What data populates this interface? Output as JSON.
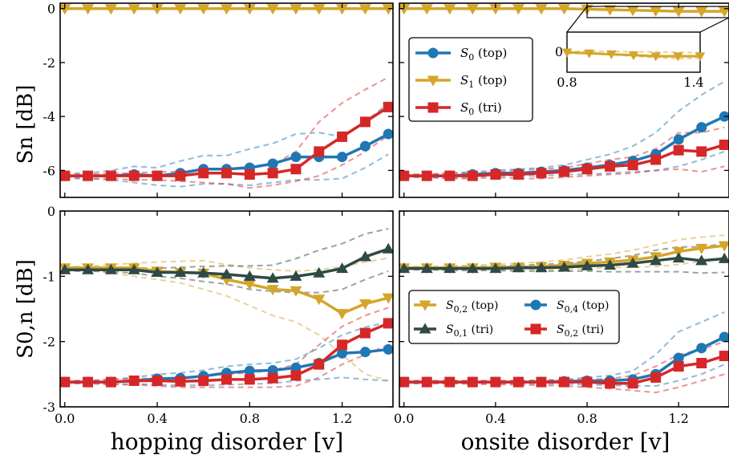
{
  "chart_data": {
    "type": "line",
    "colors": {
      "S0_top": "#1f77b4",
      "S1_top": "#d4a52a",
      "S0_tri": "#d62728",
      "S01_tri": "#2f4a45"
    },
    "x": [
      0.0,
      0.1,
      0.2,
      0.3,
      0.4,
      0.5,
      0.6,
      0.7,
      0.8,
      0.9,
      1.0,
      1.1,
      1.2,
      1.3,
      1.4
    ],
    "xticks": [
      "0.0",
      "0.4",
      "0.8",
      "1.2"
    ],
    "xlabels": [
      "hopping disorder [v]",
      "onsite disorder [v]"
    ],
    "ylabels": [
      "Sn [dB]",
      "S0,n [dB]"
    ],
    "panels": [
      {
        "id": "top-left",
        "ylim": [
          -7.0,
          0.2
        ],
        "yticks": [
          "0",
          "-2",
          "-4",
          "-6"
        ],
        "series": [
          {
            "name": "S0 (top)",
            "key": "S0_top",
            "marker": "circle",
            "values": [
              -6.2,
              -6.2,
              -6.2,
              -6.15,
              -6.2,
              -6.1,
              -5.95,
              -5.95,
              -5.9,
              -5.75,
              -5.5,
              -5.5,
              -5.5,
              -5.1,
              -4.65
            ],
            "band_hi": [
              -6.1,
              -6.1,
              -6.0,
              -5.85,
              -5.9,
              -5.65,
              -5.45,
              -5.45,
              -5.2,
              -5.0,
              -4.65,
              -4.6,
              -4.75,
              -4.2,
              -3.5
            ],
            "band_lo": [
              -6.3,
              -6.3,
              -6.35,
              -6.45,
              -6.55,
              -6.6,
              -6.5,
              -6.5,
              -6.55,
              -6.45,
              -6.35,
              -6.35,
              -6.3,
              -5.9,
              -5.4
            ]
          },
          {
            "name": "S1 (top)",
            "key": "S1_top",
            "marker": "triangle-down",
            "values": [
              0,
              0,
              0,
              0,
              0,
              0,
              0,
              0,
              0,
              0,
              0,
              0,
              0,
              0,
              0
            ]
          },
          {
            "name": "S0 (tri)",
            "key": "S0_tri",
            "marker": "square",
            "values": [
              -6.2,
              -6.2,
              -6.2,
              -6.2,
              -6.2,
              -6.2,
              -6.1,
              -6.1,
              -6.15,
              -6.1,
              -5.95,
              -5.3,
              -4.75,
              -4.2,
              -3.65
            ],
            "band_hi": [
              -6.15,
              -6.15,
              -6.1,
              -6.1,
              -6.05,
              -6.05,
              -5.95,
              -5.95,
              -5.85,
              -5.8,
              -5.3,
              -4.2,
              -3.5,
              -3.0,
              -2.55
            ],
            "band_lo": [
              -6.25,
              -6.3,
              -6.3,
              -6.35,
              -6.35,
              -6.4,
              -6.45,
              -6.5,
              -6.65,
              -6.55,
              -6.4,
              -6.2,
              -5.8,
              -5.3,
              -4.7
            ]
          }
        ]
      },
      {
        "id": "top-right",
        "ylim": [
          -7.0,
          0.2
        ],
        "yticks": [],
        "series": [
          {
            "name": "S0 (top)",
            "key": "S0_top",
            "marker": "circle",
            "values": [
              -6.2,
              -6.2,
              -6.2,
              -6.15,
              -6.1,
              -6.1,
              -6.05,
              -6.0,
              -5.9,
              -5.8,
              -5.65,
              -5.4,
              -4.85,
              -4.4,
              -4.0
            ],
            "band_hi": [
              -6.15,
              -6.15,
              -6.1,
              -6.05,
              -6.0,
              -5.95,
              -5.9,
              -5.8,
              -5.6,
              -5.4,
              -5.1,
              -4.6,
              -3.8,
              -3.2,
              -2.7
            ],
            "band_lo": [
              -6.25,
              -6.25,
              -6.3,
              -6.25,
              -6.2,
              -6.2,
              -6.2,
              -6.15,
              -6.15,
              -6.1,
              -6.05,
              -6.0,
              -5.85,
              -5.6,
              -5.3
            ]
          },
          {
            "name": "S1 (top)",
            "key": "S1_top",
            "marker": "triangle-down",
            "values": [
              0,
              0,
              0,
              0,
              0,
              0,
              0,
              0,
              -0.02,
              -0.04,
              -0.06,
              -0.08,
              -0.1,
              -0.1,
              -0.1
            ]
          },
          {
            "name": "S0 (tri)",
            "key": "S0_tri",
            "marker": "square",
            "values": [
              -6.2,
              -6.2,
              -6.2,
              -6.2,
              -6.15,
              -6.15,
              -6.1,
              -6.05,
              -5.95,
              -5.85,
              -5.8,
              -5.6,
              -5.25,
              -5.3,
              -5.05
            ],
            "band_hi": [
              -6.15,
              -6.15,
              -6.1,
              -6.1,
              -6.05,
              -6.0,
              -5.95,
              -5.9,
              -5.75,
              -5.6,
              -5.5,
              -5.2,
              -4.6,
              -4.6,
              -4.4
            ],
            "band_lo": [
              -6.25,
              -6.25,
              -6.3,
              -6.3,
              -6.25,
              -6.3,
              -6.3,
              -6.25,
              -6.2,
              -6.15,
              -6.1,
              -6.0,
              -5.95,
              -6.05,
              -5.85
            ]
          }
        ],
        "inset": {
          "xlim": [
            0.8,
            1.4
          ],
          "xticks": [
            "0.8",
            "1.4"
          ],
          "yticks": [
            "0"
          ]
        }
      },
      {
        "id": "bottom-left",
        "ylim": [
          -3.0,
          0.0
        ],
        "yticks": [
          "0",
          "-1",
          "-2",
          "-3"
        ],
        "series": [
          {
            "name": "S0,2 (top)",
            "key": "S1_top",
            "marker": "triangle-down",
            "values": [
              -0.87,
              -0.87,
              -0.87,
              -0.87,
              -0.92,
              -0.94,
              -0.95,
              -1.05,
              -1.12,
              -1.2,
              -1.22,
              -1.35,
              -1.57,
              -1.42,
              -1.33
            ],
            "band_hi": [
              -0.85,
              -0.85,
              -0.82,
              -0.8,
              -0.78,
              -0.77,
              -0.76,
              -0.82,
              -0.87,
              -0.9,
              -0.92,
              -0.9,
              -0.85,
              -0.78,
              -0.72
            ],
            "band_lo": [
              -0.9,
              -0.9,
              -0.95,
              -1.0,
              -1.05,
              -1.1,
              -1.2,
              -1.3,
              -1.45,
              -1.6,
              -1.7,
              -1.9,
              -2.2,
              -2.5,
              -2.6
            ]
          },
          {
            "name": "S0,1 (tri)",
            "key": "S01_tri",
            "marker": "triangle-up",
            "values": [
              -0.9,
              -0.9,
              -0.9,
              -0.9,
              -0.94,
              -0.94,
              -0.95,
              -0.97,
              -1.0,
              -1.03,
              -1.0,
              -0.95,
              -0.88,
              -0.7,
              -0.58
            ],
            "band_hi": [
              -0.88,
              -0.88,
              -0.88,
              -0.87,
              -0.88,
              -0.86,
              -0.85,
              -0.84,
              -0.84,
              -0.83,
              -0.73,
              -0.6,
              -0.5,
              -0.35,
              -0.27
            ],
            "band_lo": [
              -0.92,
              -0.92,
              -0.93,
              -0.95,
              -1.0,
              -1.03,
              -1.08,
              -1.12,
              -1.2,
              -1.23,
              -1.25,
              -1.25,
              -1.2,
              -1.05,
              -0.92
            ]
          },
          {
            "name": "S0,4 (top)",
            "key": "S0_top",
            "marker": "circle",
            "values": [
              -2.62,
              -2.62,
              -2.62,
              -2.6,
              -2.57,
              -2.56,
              -2.53,
              -2.48,
              -2.45,
              -2.44,
              -2.4,
              -2.33,
              -2.18,
              -2.16,
              -2.12
            ],
            "band_hi": [
              -2.6,
              -2.6,
              -2.58,
              -2.55,
              -2.5,
              -2.48,
              -2.44,
              -2.38,
              -2.35,
              -2.33,
              -2.27,
              -2.1,
              -1.9,
              -1.78,
              -1.7
            ],
            "band_lo": [
              -2.64,
              -2.64,
              -2.65,
              -2.65,
              -2.66,
              -2.67,
              -2.67,
              -2.66,
              -2.65,
              -2.64,
              -2.6,
              -2.58,
              -2.55,
              -2.58,
              -2.6
            ]
          },
          {
            "name": "S0,2 (tri)",
            "key": "S0_tri",
            "marker": "square",
            "values": [
              -2.62,
              -2.62,
              -2.62,
              -2.6,
              -2.6,
              -2.61,
              -2.6,
              -2.58,
              -2.58,
              -2.56,
              -2.52,
              -2.35,
              -2.05,
              -1.87,
              -1.72
            ],
            "band_hi": [
              -2.6,
              -2.6,
              -2.58,
              -2.57,
              -2.56,
              -2.56,
              -2.53,
              -2.5,
              -2.48,
              -2.44,
              -2.35,
              -2.05,
              -1.77,
              -1.6,
              -1.48
            ],
            "band_lo": [
              -2.64,
              -2.64,
              -2.66,
              -2.66,
              -2.68,
              -2.7,
              -2.7,
              -2.7,
              -2.7,
              -2.7,
              -2.68,
              -2.55,
              -2.35,
              -2.2,
              -2.05
            ]
          }
        ]
      },
      {
        "id": "bottom-right",
        "ylim": [
          -3.0,
          0.0
        ],
        "yticks": [],
        "series": [
          {
            "name": "S0,2 (top)",
            "key": "S1_top",
            "marker": "triangle-down",
            "values": [
              -0.87,
              -0.87,
              -0.87,
              -0.87,
              -0.86,
              -0.86,
              -0.85,
              -0.83,
              -0.8,
              -0.78,
              -0.75,
              -0.7,
              -0.62,
              -0.57,
              -0.53
            ],
            "band_hi": [
              -0.85,
              -0.85,
              -0.84,
              -0.83,
              -0.82,
              -0.8,
              -0.78,
              -0.75,
              -0.7,
              -0.66,
              -0.6,
              -0.52,
              -0.44,
              -0.4,
              -0.37
            ],
            "band_lo": [
              -0.89,
              -0.89,
              -0.9,
              -0.9,
              -0.9,
              -0.9,
              -0.9,
              -0.9,
              -0.88,
              -0.87,
              -0.86,
              -0.85,
              -0.82,
              -0.77,
              -0.72
            ]
          },
          {
            "name": "S0,1 (tri)",
            "key": "S01_tri",
            "marker": "triangle-up",
            "values": [
              -0.88,
              -0.88,
              -0.88,
              -0.88,
              -0.88,
              -0.87,
              -0.87,
              -0.86,
              -0.84,
              -0.83,
              -0.8,
              -0.76,
              -0.72,
              -0.76,
              -0.73
            ],
            "band_hi": [
              -0.86,
              -0.86,
              -0.86,
              -0.85,
              -0.85,
              -0.83,
              -0.82,
              -0.8,
              -0.77,
              -0.73,
              -0.68,
              -0.6,
              -0.55,
              -0.55,
              -0.5
            ],
            "band_lo": [
              -0.9,
              -0.9,
              -0.91,
              -0.91,
              -0.91,
              -0.92,
              -0.92,
              -0.92,
              -0.92,
              -0.93,
              -0.93,
              -0.93,
              -0.93,
              -0.95,
              -0.94
            ]
          },
          {
            "name": "S0,4 (top)",
            "key": "S0_top",
            "marker": "circle",
            "values": [
              -2.62,
              -2.62,
              -2.62,
              -2.62,
              -2.62,
              -2.62,
              -2.62,
              -2.61,
              -2.6,
              -2.6,
              -2.58,
              -2.5,
              -2.25,
              -2.1,
              -1.93
            ],
            "band_hi": [
              -2.6,
              -2.6,
              -2.6,
              -2.6,
              -2.6,
              -2.6,
              -2.59,
              -2.58,
              -2.55,
              -2.52,
              -2.45,
              -2.2,
              -1.85,
              -1.7,
              -1.55
            ],
            "band_lo": [
              -2.64,
              -2.64,
              -2.64,
              -2.64,
              -2.64,
              -2.65,
              -2.65,
              -2.65,
              -2.66,
              -2.67,
              -2.68,
              -2.68,
              -2.6,
              -2.5,
              -2.35
            ]
          },
          {
            "name": "S0,2 (tri)",
            "key": "S0_tri",
            "marker": "square",
            "values": [
              -2.62,
              -2.62,
              -2.62,
              -2.62,
              -2.62,
              -2.62,
              -2.62,
              -2.62,
              -2.62,
              -2.64,
              -2.64,
              -2.55,
              -2.38,
              -2.33,
              -2.22
            ],
            "band_hi": [
              -2.6,
              -2.6,
              -2.6,
              -2.6,
              -2.6,
              -2.6,
              -2.6,
              -2.59,
              -2.58,
              -2.57,
              -2.52,
              -2.38,
              -2.2,
              -2.12,
              -2.0
            ],
            "band_lo": [
              -2.64,
              -2.64,
              -2.64,
              -2.65,
              -2.66,
              -2.66,
              -2.67,
              -2.68,
              -2.7,
              -2.72,
              -2.75,
              -2.78,
              -2.7,
              -2.6,
              -2.5
            ]
          }
        ]
      }
    ],
    "legends": [
      {
        "placement": "top-right panel, left",
        "entries": [
          {
            "key": "S0_top",
            "marker": "circle",
            "sym": "S",
            "sub": "0",
            "tail": "(top)"
          },
          {
            "key": "S1_top",
            "marker": "triangle-down",
            "sym": "S",
            "sub": "1",
            "tail": "(top)"
          },
          {
            "key": "S0_tri",
            "marker": "square",
            "sym": "S",
            "sub": "0",
            "tail": "(tri)"
          }
        ]
      },
      {
        "placement": "bottom-right panel, center",
        "entries": [
          {
            "key": "S1_top",
            "marker": "triangle-down",
            "sym": "S",
            "sub": "0,2",
            "tail": "(top)"
          },
          {
            "key": "S0_top",
            "marker": "circle",
            "sym": "S",
            "sub": "0,4",
            "tail": "(top)"
          },
          {
            "key": "S01_tri",
            "marker": "triangle-up",
            "sym": "S",
            "sub": "0,1",
            "tail": "(tri)"
          },
          {
            "key": "S0_tri",
            "marker": "square",
            "sym": "S",
            "sub": "0,2",
            "tail": "(tri)"
          }
        ]
      }
    ]
  }
}
